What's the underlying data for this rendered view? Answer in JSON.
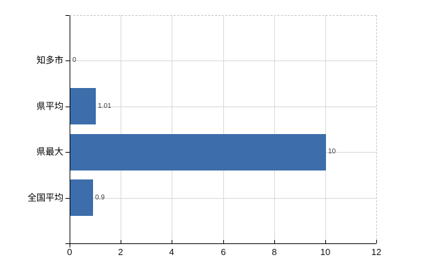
{
  "chart_data": {
    "type": "bar",
    "orientation": "horizontal",
    "title": "",
    "xlabel": "",
    "ylabel": "",
    "categories": [
      "知多市",
      "県平均",
      "県最大",
      "全国平均"
    ],
    "values": [
      0,
      1.01,
      10,
      0.9
    ],
    "value_labels": [
      "0",
      "1.01",
      "10",
      "0.9"
    ],
    "xlim": [
      0,
      12
    ],
    "x_ticks": [
      0,
      2,
      4,
      6,
      8,
      10,
      12
    ],
    "x_tick_labels": [
      "0",
      "2",
      "4",
      "6",
      "8",
      "10",
      "12"
    ],
    "grid": "on",
    "legend": "none",
    "bar_color": "#3d6eab"
  }
}
